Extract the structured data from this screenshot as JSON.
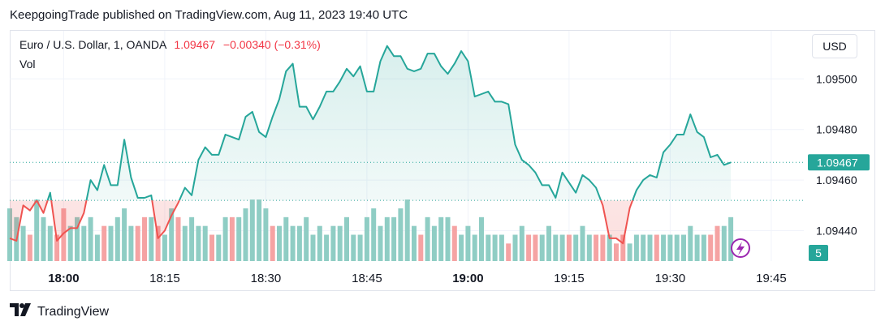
{
  "header": {
    "published": "KeepgoingTrade published on TradingView.com, Aug 11, 2023 19:40 UTC"
  },
  "legend": {
    "symbol": "Euro / U.S. Dollar, 1, OANDA",
    "price": "1.09467",
    "change": "−0.00340 (−0.31%)",
    "vol_label": "Vol"
  },
  "currency_button": "USD",
  "footer": {
    "brand": "TradingView"
  },
  "colors": {
    "up": "#26a69a",
    "down": "#ef5350",
    "vol_up": "#8fcdc4",
    "vol_down": "#f5a3a3",
    "accent": "#9c27b0"
  },
  "icons": {
    "flash": "lightning-icon",
    "logo": "tradingview-logo-icon"
  },
  "chart_data": {
    "type": "line",
    "symbol": "EURUSD",
    "interval": "1 minute",
    "x_axis_ticks": [
      "18:00",
      "18:15",
      "18:30",
      "18:45",
      "19:00",
      "19:15",
      "19:30",
      "19:45"
    ],
    "x_axis_bold": [
      "18:00",
      "19:00"
    ],
    "y_axis_ticks": [
      1.0944,
      1.0946,
      1.0948,
      1.095
    ],
    "y_axis_labels": [
      "1.09440",
      "1.09460",
      "1.09480",
      "1.09500"
    ],
    "ylim": [
      1.09428,
      1.09519
    ],
    "last_price": 1.09467,
    "last_price_label": "1.09467",
    "last_volume_label": "5",
    "baseline": 1.09452,
    "grid": true,
    "series": [
      {
        "values": [
          1.09437,
          1.09436,
          1.0945,
          1.09448,
          1.09452,
          1.09447,
          1.09455,
          1.09436,
          1.09439,
          1.09441,
          1.09441,
          1.09447,
          1.0946,
          1.09456,
          1.09466,
          1.09458,
          1.09458,
          1.09476,
          1.09461,
          1.09453,
          1.09453,
          1.09454,
          1.09437,
          1.0944,
          1.09446,
          1.09451,
          1.09457,
          1.09454,
          1.09468,
          1.09473,
          1.0947,
          1.0947,
          1.09478,
          1.09477,
          1.09476,
          1.09485,
          1.09487,
          1.09479,
          1.09477,
          1.09485,
          1.09492,
          1.09503,
          1.09506,
          1.09489,
          1.09489,
          1.09484,
          1.09489,
          1.09495,
          1.09495,
          1.09499,
          1.09504,
          1.09501,
          1.09505,
          1.09495,
          1.09495,
          1.09507,
          1.09513,
          1.09509,
          1.09509,
          1.09504,
          1.09503,
          1.09504,
          1.0951,
          1.0951,
          1.09505,
          1.09502,
          1.09506,
          1.09511,
          1.09507,
          1.09493,
          1.09494,
          1.09495,
          1.09491,
          1.09491,
          1.0949,
          1.09474,
          1.09468,
          1.09466,
          1.09463,
          1.09458,
          1.09458,
          1.09453,
          1.09463,
          1.09459,
          1.09455,
          1.09462,
          1.0946,
          1.09457,
          1.0945,
          1.09437,
          1.09437,
          1.09435,
          1.09449,
          1.09456,
          1.0946,
          1.09462,
          1.09461,
          1.09471,
          1.09474,
          1.09478,
          1.09478,
          1.09486,
          1.09479,
          1.09477,
          1.09469,
          1.0947,
          1.09466,
          1.09467
        ]
      }
    ],
    "volume": {
      "values": [
        6,
        5,
        4,
        3,
        7,
        5,
        4,
        3,
        6,
        4,
        5,
        4,
        5,
        3,
        4,
        4,
        5,
        6,
        4,
        4,
        5,
        5,
        4,
        3,
        6,
        5,
        4,
        5,
        4,
        4,
        3,
        3,
        5,
        5,
        5,
        6,
        7,
        7,
        6,
        4,
        4,
        5,
        4,
        4,
        5,
        3,
        4,
        3,
        4,
        4,
        5,
        3,
        3,
        5,
        6,
        4,
        5,
        5,
        6,
        7,
        4,
        3,
        5,
        4,
        5,
        5,
        4,
        3,
        4,
        3,
        5,
        3,
        3,
        3,
        2,
        3,
        4,
        3,
        3,
        3,
        4,
        3,
        3,
        3,
        3,
        4,
        3,
        3,
        3,
        3,
        2,
        3,
        2,
        3,
        3,
        3,
        3,
        3,
        3,
        3,
        3,
        4,
        3,
        3,
        3,
        4,
        4,
        5
      ],
      "down": [
        false,
        false,
        false,
        true,
        false,
        false,
        false,
        true,
        true,
        false,
        false,
        false,
        false,
        false,
        true,
        false,
        false,
        false,
        false,
        true,
        true,
        false,
        true,
        false,
        false,
        true,
        false,
        false,
        false,
        false,
        true,
        false,
        false,
        true,
        false,
        false,
        false,
        false,
        false,
        true,
        false,
        false,
        false,
        false,
        false,
        false,
        false,
        false,
        false,
        false,
        false,
        false,
        false,
        false,
        false,
        false,
        false,
        false,
        false,
        false,
        false,
        true,
        false,
        false,
        false,
        false,
        true,
        false,
        false,
        false,
        false,
        false,
        false,
        false,
        true,
        false,
        false,
        true,
        true,
        false,
        false,
        false,
        false,
        true,
        false,
        false,
        false,
        true,
        true,
        false,
        true,
        true,
        false,
        false,
        false,
        false,
        true,
        false,
        false,
        false,
        false,
        false,
        false,
        false,
        true,
        true,
        false,
        false
      ]
    }
  }
}
